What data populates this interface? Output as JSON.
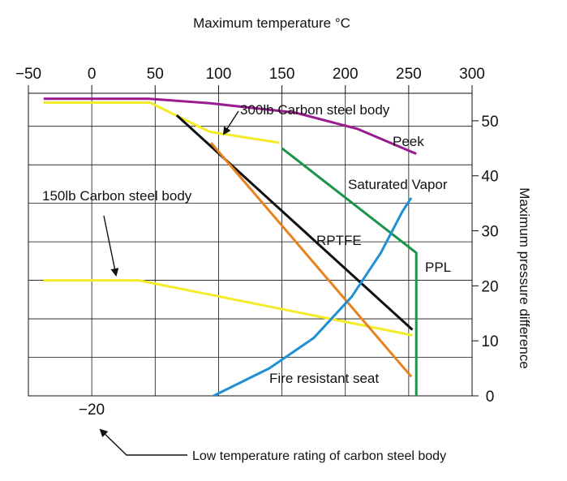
{
  "chart_data": {
    "type": "line",
    "x_axis_title": "Maximum temperature °C",
    "y_axis_title": "Maximum pressure difference",
    "xlim": [
      -50,
      300
    ],
    "ylim": [
      0,
      55
    ],
    "x_ticks": [
      -50,
      0,
      50,
      100,
      150,
      200,
      250,
      300
    ],
    "x_tick_labels": [
      "−50",
      "0",
      "50",
      "100",
      "150",
      "200",
      "250",
      "300"
    ],
    "y_ticks": [
      0,
      10,
      20,
      30,
      40,
      50
    ],
    "y_tick_labels": [
      "0",
      "10",
      "20",
      "30",
      "40",
      "50"
    ],
    "grid": true,
    "series": [
      {
        "name": "Peek",
        "color": "#9a1a8f",
        "points": [
          [
            -38,
            54
          ],
          [
            45,
            54
          ],
          [
            93,
            53.2
          ],
          [
            160,
            51.5
          ],
          [
            210,
            48.5
          ],
          [
            256,
            44
          ]
        ]
      },
      {
        "name": "300lb Carbon steel body",
        "color": "#f2ec2a",
        "points": [
          [
            -38,
            53.3
          ],
          [
            46,
            53.3
          ],
          [
            93,
            48
          ],
          [
            148,
            46
          ]
        ]
      },
      {
        "name": "150lb Carbon steel body",
        "color": "#f2ec2a",
        "points": [
          [
            -38,
            21
          ],
          [
            37,
            21
          ],
          [
            253,
            11
          ]
        ]
      },
      {
        "name": "Saturated Vapor",
        "color": "#1a9448",
        "points": [
          [
            150,
            45
          ],
          [
            256,
            26
          ],
          [
            256,
            0
          ]
        ]
      },
      {
        "name": "RPTFE",
        "color": "#111111",
        "points": [
          [
            67,
            51
          ],
          [
            253,
            12
          ]
        ]
      },
      {
        "name": "PPL",
        "color": "#e8821d",
        "points": [
          [
            94,
            46
          ],
          [
            252,
            3.5
          ]
        ]
      },
      {
        "name": "Fire resistant seat",
        "color": "#1f8fd6",
        "points": [
          [
            96,
            0
          ],
          [
            140,
            5
          ],
          [
            175,
            10.5
          ],
          [
            205,
            18
          ],
          [
            228,
            26
          ],
          [
            245,
            33.5
          ],
          [
            252,
            36
          ]
        ]
      }
    ],
    "series_labels": {
      "peek": "Peek",
      "cs300": "300lb Carbon steel body",
      "cs150": "150lb Carbon steel body",
      "sat": "Saturated Vapor",
      "rptfe": "RPTFE",
      "ppl": "PPL",
      "fire": "Fire resistant seat"
    },
    "low_temp_value": "−20",
    "low_temp_text": "Low temperature rating of carbon steel body"
  }
}
